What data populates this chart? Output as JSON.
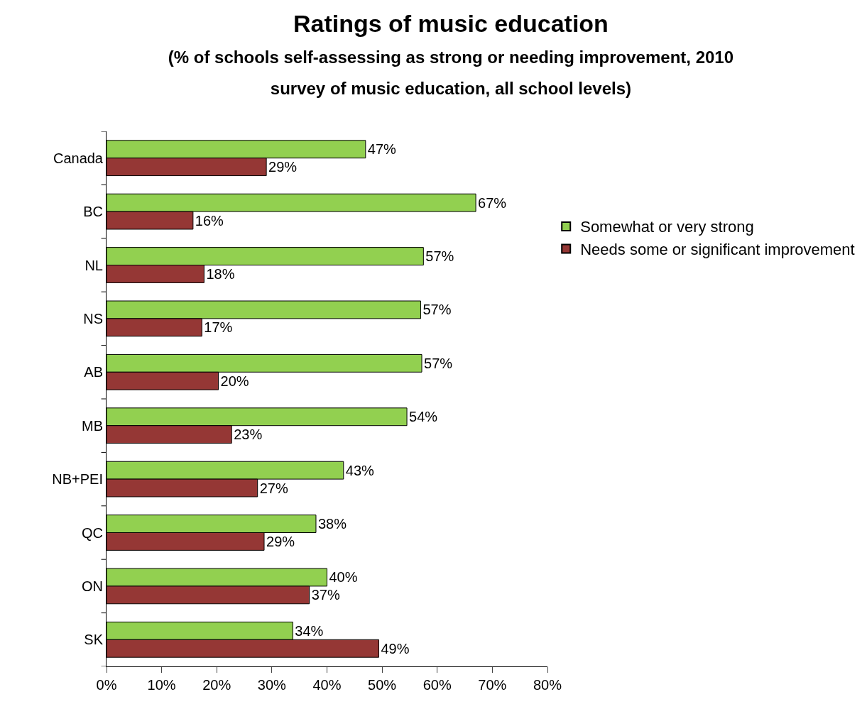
{
  "chart_data": {
    "type": "bar",
    "orientation": "horizontal",
    "title": "Ratings of music education",
    "subtitle": "(% of schools self-assessing as strong or needing improvement, 2010 survey of music education, all school levels)",
    "categories": [
      "Canada",
      "BC",
      "NL",
      "NS",
      "AB",
      "MB",
      "NB+PEI",
      "QC",
      "ON",
      "SK"
    ],
    "series": [
      {
        "name": "Somewhat or very strong",
        "color": "#92d050",
        "values": [
          47,
          67,
          57.5,
          57,
          57.2,
          54.5,
          43,
          38,
          40,
          33.8
        ],
        "value_labels": [
          "47%",
          "67%",
          "57%",
          "57%",
          "57%",
          "54%",
          "43%",
          "38%",
          "40%",
          "34%"
        ]
      },
      {
        "name": "Needs some or significant improvement",
        "color": "#953735",
        "values": [
          29,
          15.7,
          17.7,
          17.3,
          20.3,
          22.7,
          27.4,
          28.6,
          36.8,
          49.4
        ],
        "value_labels": [
          "29%",
          "16%",
          "18%",
          "17%",
          "20%",
          "23%",
          "27%",
          "29%",
          "37%",
          "49%"
        ]
      }
    ],
    "xlim": [
      0,
      80
    ],
    "xticks": [
      {
        "value": 0,
        "label": "0%"
      },
      {
        "value": 10,
        "label": "10%"
      },
      {
        "value": 20,
        "label": "20%"
      },
      {
        "value": 30,
        "label": "30%"
      },
      {
        "value": 40,
        "label": "40%"
      },
      {
        "value": 50,
        "label": "50%"
      },
      {
        "value": 60,
        "label": "60%"
      },
      {
        "value": 70,
        "label": "70%"
      },
      {
        "value": 80,
        "label": "80%"
      }
    ],
    "grid": false,
    "legend": "right"
  }
}
